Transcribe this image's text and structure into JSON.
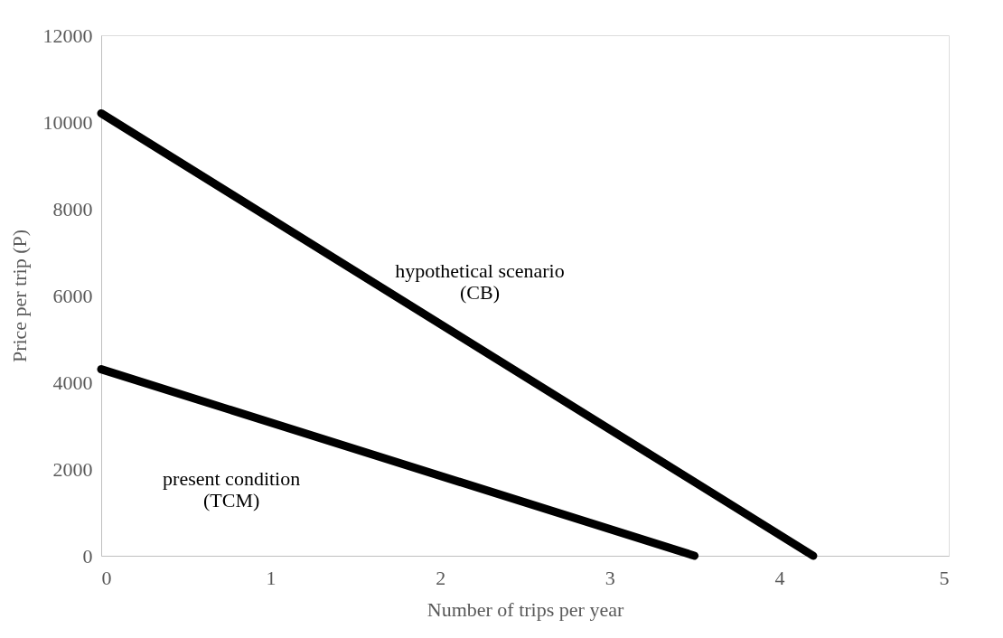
{
  "chart_data": {
    "type": "line",
    "xlabel": "Number of trips per year",
    "ylabel": "Price per trip (P)",
    "xlim": [
      0,
      5
    ],
    "xticks": [
      0,
      1,
      2,
      3,
      4,
      5
    ],
    "ylim": [
      0,
      12000
    ],
    "yticks": [
      0,
      2000,
      4000,
      6000,
      8000,
      10000,
      12000
    ],
    "grid": false,
    "legend": false,
    "line_style": "solid",
    "series": [
      {
        "name": "hypothetical scenario\n(CB)",
        "color": "#000000",
        "x": [
          0,
          4.2
        ],
        "values": [
          10200,
          0
        ]
      },
      {
        "name": "present condition\n(TCM)",
        "color": "#000000",
        "x": [
          0,
          3.5
        ],
        "values": [
          4300,
          0
        ]
      }
    ]
  }
}
